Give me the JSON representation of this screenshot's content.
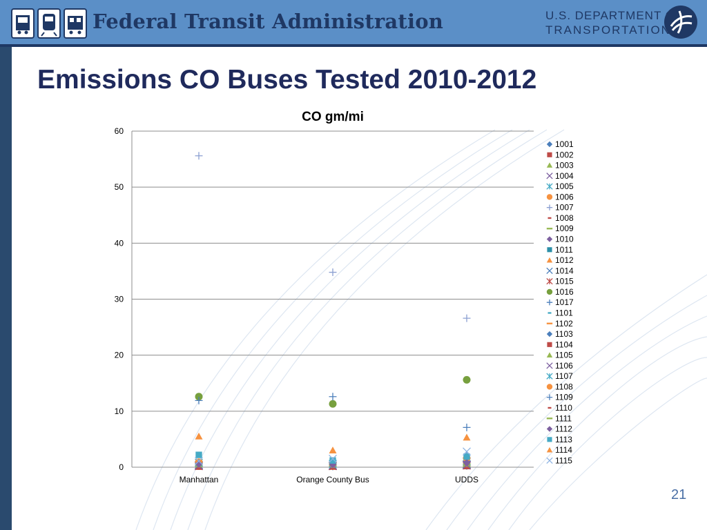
{
  "header": {
    "agency_title": "Federal Transit Administration",
    "department_line1": "U.S. DEPARTMENT OF",
    "department_line2": "TRANSPORTATION"
  },
  "slide": {
    "title": "Emissions CO Buses Tested 2010-2012",
    "number": "21"
  },
  "colors": {
    "header_bg": "#5b8fc7",
    "navy": "#1f3864",
    "title_text": "#1f2a5c"
  },
  "chart_data": {
    "type": "scatter",
    "title": "CO gm/mi",
    "xlabel": "",
    "ylabel": "",
    "categories": [
      "Manhattan",
      "Orange County Bus",
      "UDDS"
    ],
    "ylim": [
      0,
      60
    ],
    "yticks": [
      0,
      10,
      20,
      30,
      40,
      50,
      60
    ],
    "grid": true,
    "legend_position": "right",
    "series": [
      {
        "name": "1001",
        "marker": "diamond",
        "color": "#4a7ebb",
        "values": [
          0.2,
          0.1,
          0.2
        ]
      },
      {
        "name": "1002",
        "marker": "square",
        "color": "#be4b48",
        "values": [
          0.1,
          0.1,
          0.2
        ]
      },
      {
        "name": "1003",
        "marker": "triangle",
        "color": "#98b954",
        "values": [
          0.3,
          0.2,
          0.3
        ]
      },
      {
        "name": "1004",
        "marker": "x",
        "color": "#7d60a0",
        "values": [
          0.2,
          0.2,
          0.3
        ]
      },
      {
        "name": "1005",
        "marker": "asterisk",
        "color": "#46aac5",
        "values": [
          0.4,
          0.3,
          0.5
        ]
      },
      {
        "name": "1006",
        "marker": "circle",
        "color": "#f69240",
        "values": [
          0.3,
          0.2,
          0.4
        ]
      },
      {
        "name": "1007",
        "marker": "plus",
        "color": "#8a9fd1",
        "values": [
          55.6,
          34.8,
          26.6
        ]
      },
      {
        "name": "1008",
        "marker": "dash",
        "color": "#be4b48",
        "values": [
          0.1,
          0.1,
          0.1
        ]
      },
      {
        "name": "1009",
        "marker": "line",
        "color": "#98b954",
        "values": [
          0.2,
          0.1,
          0.2
        ]
      },
      {
        "name": "1010",
        "marker": "diamond",
        "color": "#7d60a0",
        "values": [
          0.3,
          0.2,
          0.3
        ]
      },
      {
        "name": "1011",
        "marker": "square",
        "color": "#2c8fa8",
        "values": [
          0.5,
          0.4,
          0.6
        ]
      },
      {
        "name": "1012",
        "marker": "triangle",
        "color": "#f69240",
        "values": [
          0.6,
          0.5,
          0.8
        ]
      },
      {
        "name": "1014",
        "marker": "x",
        "color": "#4a7ebb",
        "values": [
          0.4,
          0.3,
          0.5
        ]
      },
      {
        "name": "1015",
        "marker": "asterisk",
        "color": "#be4b48",
        "values": [
          0.2,
          0.2,
          0.3
        ]
      },
      {
        "name": "1016",
        "marker": "circle",
        "color": "#77a03e",
        "values": [
          12.6,
          11.3,
          15.6
        ]
      },
      {
        "name": "1017",
        "marker": "plus",
        "color": "#4a7ebb",
        "values": [
          11.9,
          12.6,
          7.1
        ]
      },
      {
        "name": "1101",
        "marker": "dash",
        "color": "#46aac5",
        "values": [
          0.6,
          0.5,
          0.7
        ]
      },
      {
        "name": "1102",
        "marker": "line",
        "color": "#f69240",
        "values": [
          0.3,
          0.3,
          0.4
        ]
      },
      {
        "name": "1103",
        "marker": "diamond",
        "color": "#4a7ebb",
        "values": [
          0.4,
          0.3,
          0.4
        ]
      },
      {
        "name": "1104",
        "marker": "square",
        "color": "#be4b48",
        "values": [
          0.2,
          0.2,
          0.3
        ]
      },
      {
        "name": "1105",
        "marker": "triangle",
        "color": "#98b954",
        "values": [
          0.5,
          0.4,
          0.6
        ]
      },
      {
        "name": "1106",
        "marker": "x",
        "color": "#7d60a0",
        "values": [
          0.3,
          0.3,
          0.4
        ]
      },
      {
        "name": "1107",
        "marker": "asterisk",
        "color": "#46aac5",
        "values": [
          0.8,
          0.6,
          1.0
        ]
      },
      {
        "name": "1108",
        "marker": "circle",
        "color": "#f69240",
        "values": [
          0.9,
          0.7,
          1.6
        ]
      },
      {
        "name": "1109",
        "marker": "plus",
        "color": "#4a7ebb",
        "values": [
          0.7,
          0.6,
          2.2
        ]
      },
      {
        "name": "1110",
        "marker": "dash",
        "color": "#be4b48",
        "values": [
          0.4,
          0.3,
          0.5
        ]
      },
      {
        "name": "1111",
        "marker": "line",
        "color": "#98b954",
        "values": [
          0.5,
          0.4,
          0.6
        ]
      },
      {
        "name": "1112",
        "marker": "diamond",
        "color": "#7d60a0",
        "values": [
          0.6,
          0.5,
          0.8
        ]
      },
      {
        "name": "1113",
        "marker": "square",
        "color": "#46aac5",
        "values": [
          2.2,
          1.2,
          1.9
        ]
      },
      {
        "name": "1114",
        "marker": "triangle",
        "color": "#f69240",
        "values": [
          5.5,
          3.0,
          5.3
        ]
      },
      {
        "name": "1115",
        "marker": "x",
        "color": "#8eb4e3",
        "values": [
          1.1,
          1.5,
          2.8
        ]
      }
    ]
  }
}
